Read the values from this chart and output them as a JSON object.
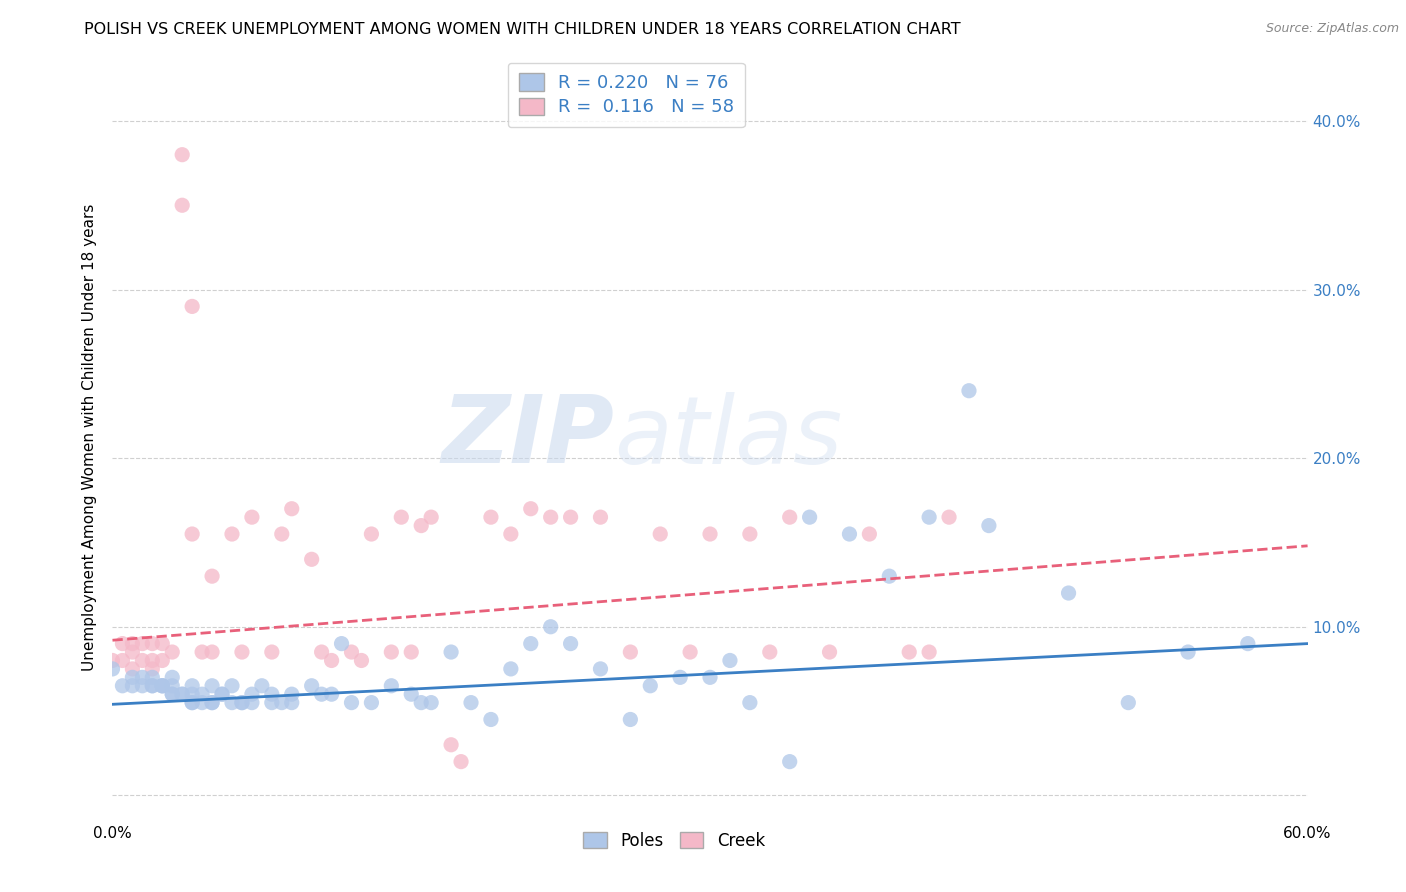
{
  "title": "POLISH VS CREEK UNEMPLOYMENT AMONG WOMEN WITH CHILDREN UNDER 18 YEARS CORRELATION CHART",
  "source": "Source: ZipAtlas.com",
  "ylabel": "Unemployment Among Women with Children Under 18 years",
  "xlim": [
    0.0,
    0.6
  ],
  "ylim": [
    -0.015,
    0.44
  ],
  "xtick_positions": [
    0.0,
    0.1,
    0.2,
    0.3,
    0.4,
    0.5,
    0.6
  ],
  "xtick_labels": [
    "0.0%",
    "",
    "",
    "",
    "",
    "",
    "60.0%"
  ],
  "ytick_positions": [
    0.0,
    0.1,
    0.2,
    0.3,
    0.4
  ],
  "ytick_labels_right": [
    "",
    "10.0%",
    "20.0%",
    "30.0%",
    "40.0%"
  ],
  "poles_R": "0.220",
  "poles_N": "76",
  "creek_R": "0.116",
  "creek_N": "58",
  "poles_color": "#aec6e8",
  "creek_color": "#f4b8c8",
  "poles_line_color": "#3b7fc4",
  "creek_line_color": "#e8607a",
  "poles_scatter_x": [
    0.0,
    0.005,
    0.01,
    0.01,
    0.015,
    0.015,
    0.02,
    0.02,
    0.02,
    0.025,
    0.025,
    0.025,
    0.03,
    0.03,
    0.03,
    0.03,
    0.035,
    0.035,
    0.04,
    0.04,
    0.04,
    0.04,
    0.045,
    0.045,
    0.05,
    0.05,
    0.05,
    0.055,
    0.055,
    0.06,
    0.06,
    0.065,
    0.065,
    0.07,
    0.07,
    0.075,
    0.08,
    0.08,
    0.085,
    0.09,
    0.09,
    0.1,
    0.105,
    0.11,
    0.115,
    0.12,
    0.13,
    0.14,
    0.15,
    0.155,
    0.16,
    0.17,
    0.18,
    0.19,
    0.2,
    0.21,
    0.22,
    0.23,
    0.245,
    0.26,
    0.27,
    0.285,
    0.3,
    0.31,
    0.32,
    0.34,
    0.35,
    0.37,
    0.39,
    0.41,
    0.43,
    0.44,
    0.48,
    0.51,
    0.54,
    0.57
  ],
  "poles_scatter_y": [
    0.075,
    0.065,
    0.07,
    0.065,
    0.07,
    0.065,
    0.065,
    0.065,
    0.07,
    0.065,
    0.065,
    0.065,
    0.06,
    0.06,
    0.065,
    0.07,
    0.06,
    0.06,
    0.055,
    0.055,
    0.06,
    0.065,
    0.06,
    0.055,
    0.055,
    0.065,
    0.055,
    0.06,
    0.06,
    0.055,
    0.065,
    0.055,
    0.055,
    0.06,
    0.055,
    0.065,
    0.055,
    0.06,
    0.055,
    0.055,
    0.06,
    0.065,
    0.06,
    0.06,
    0.09,
    0.055,
    0.055,
    0.065,
    0.06,
    0.055,
    0.055,
    0.085,
    0.055,
    0.045,
    0.075,
    0.09,
    0.1,
    0.09,
    0.075,
    0.045,
    0.065,
    0.07,
    0.07,
    0.08,
    0.055,
    0.02,
    0.165,
    0.155,
    0.13,
    0.165,
    0.24,
    0.16,
    0.12,
    0.055,
    0.085,
    0.09
  ],
  "creek_scatter_x": [
    0.0,
    0.005,
    0.005,
    0.01,
    0.01,
    0.01,
    0.015,
    0.015,
    0.02,
    0.02,
    0.02,
    0.025,
    0.025,
    0.03,
    0.035,
    0.035,
    0.04,
    0.04,
    0.045,
    0.05,
    0.05,
    0.06,
    0.065,
    0.07,
    0.08,
    0.085,
    0.09,
    0.1,
    0.105,
    0.11,
    0.12,
    0.125,
    0.13,
    0.14,
    0.145,
    0.15,
    0.155,
    0.16,
    0.17,
    0.175,
    0.19,
    0.2,
    0.21,
    0.22,
    0.23,
    0.245,
    0.26,
    0.275,
    0.29,
    0.3,
    0.32,
    0.33,
    0.34,
    0.36,
    0.38,
    0.4,
    0.41,
    0.42
  ],
  "creek_scatter_y": [
    0.08,
    0.08,
    0.09,
    0.075,
    0.085,
    0.09,
    0.08,
    0.09,
    0.075,
    0.08,
    0.09,
    0.08,
    0.09,
    0.085,
    0.38,
    0.35,
    0.29,
    0.155,
    0.085,
    0.13,
    0.085,
    0.155,
    0.085,
    0.165,
    0.085,
    0.155,
    0.17,
    0.14,
    0.085,
    0.08,
    0.085,
    0.08,
    0.155,
    0.085,
    0.165,
    0.085,
    0.16,
    0.165,
    0.03,
    0.02,
    0.165,
    0.155,
    0.17,
    0.165,
    0.165,
    0.165,
    0.085,
    0.155,
    0.085,
    0.155,
    0.155,
    0.085,
    0.165,
    0.085,
    0.155,
    0.085,
    0.085,
    0.165
  ],
  "poles_trend_x": [
    0.0,
    0.6
  ],
  "poles_trend_y": [
    0.054,
    0.09
  ],
  "creek_trend_x": [
    0.0,
    0.6
  ],
  "creek_trend_y": [
    0.092,
    0.148
  ],
  "watermark_zip": "ZIP",
  "watermark_atlas": "atlas",
  "background_color": "#ffffff",
  "grid_color": "#d0d0d0",
  "title_fontsize": 11.5,
  "axis_label_fontsize": 11,
  "tick_fontsize": 11
}
